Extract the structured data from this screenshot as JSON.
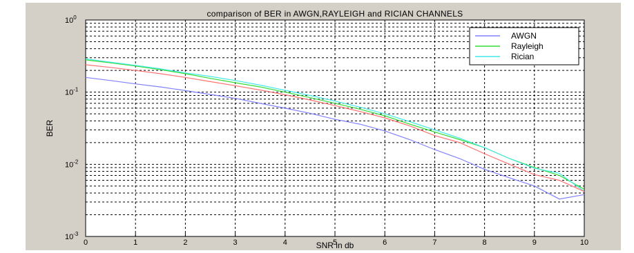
{
  "chart_data": {
    "type": "line",
    "title": "comparison of BER in AWGN,RAYLEIGH and RICIAN CHANNELS",
    "xlabel": "SNR in db",
    "ylabel": "BER",
    "xlim": [
      0,
      10
    ],
    "ylim": [
      0.001,
      1
    ],
    "yscale": "log",
    "grid": true,
    "legend_position": "top-right",
    "x_ticks": [
      "0",
      "1",
      "2",
      "3",
      "4",
      "5",
      "6",
      "7",
      "8",
      "9",
      "10"
    ],
    "y_ticks": [
      {
        "base": "10",
        "exp": "-3",
        "value": 0.001
      },
      {
        "base": "10",
        "exp": "-2",
        "value": 0.01
      },
      {
        "base": "10",
        "exp": "-1",
        "value": 0.1
      },
      {
        "base": "10",
        "exp": "0",
        "value": 1
      }
    ],
    "colors": {
      "figure_background": "#d4d0c8",
      "plot_background": "#ffffff",
      "grid": "#000000"
    },
    "series": [
      {
        "name": "AWGN",
        "color": "#8080ff",
        "x": [
          0,
          0.5,
          1,
          1.5,
          2,
          2.5,
          3,
          3.5,
          4,
          4.5,
          5,
          5.5,
          6,
          6.5,
          7,
          7.5,
          8,
          8.5,
          9,
          9.5,
          10
        ],
        "values": [
          0.16,
          0.145,
          0.13,
          0.118,
          0.105,
          0.093,
          0.082,
          0.07,
          0.06,
          0.051,
          0.042,
          0.036,
          0.029,
          0.022,
          0.016,
          0.012,
          0.0085,
          0.0065,
          0.005,
          0.0033,
          0.0038
        ]
      },
      {
        "name": "Rayleigh",
        "color": "#33dd33",
        "x": [
          0,
          0.5,
          1,
          1.5,
          2,
          2.5,
          3,
          3.5,
          4,
          4.5,
          5,
          5.5,
          6,
          6.5,
          7,
          7.5,
          8,
          8.5,
          9,
          9.5,
          10
        ],
        "values": [
          0.28,
          0.255,
          0.23,
          0.205,
          0.18,
          0.155,
          0.135,
          0.118,
          0.1,
          0.084,
          0.07,
          0.058,
          0.047,
          0.036,
          0.028,
          0.022,
          0.017,
          0.012,
          0.009,
          0.007,
          0.0045
        ]
      },
      {
        "name": "Rician",
        "color": "#44e8e8",
        "x": [
          0,
          0.5,
          1,
          1.5,
          2,
          2.5,
          3,
          3.5,
          4,
          4.5,
          5,
          5.5,
          6,
          6.5,
          7,
          7.5,
          8,
          8.5,
          9,
          9.5,
          10
        ],
        "values": [
          0.29,
          0.26,
          0.235,
          0.21,
          0.185,
          0.165,
          0.145,
          0.125,
          0.106,
          0.09,
          0.075,
          0.062,
          0.05,
          0.039,
          0.03,
          0.023,
          0.017,
          0.012,
          0.0088,
          0.0075,
          0.0042
        ]
      },
      {
        "name": "",
        "color": "#ff7070",
        "x": [
          0,
          0.5,
          1,
          1.5,
          2,
          2.5,
          3,
          3.5,
          4,
          4.5,
          5,
          5.5,
          6,
          6.5,
          7,
          7.5,
          8,
          8.5,
          9,
          9.5,
          10
        ],
        "values": [
          0.24,
          0.22,
          0.2,
          0.18,
          0.16,
          0.14,
          0.123,
          0.107,
          0.092,
          0.078,
          0.065,
          0.054,
          0.044,
          0.034,
          0.025,
          0.02,
          0.014,
          0.01,
          0.0072,
          0.006,
          0.0042
        ]
      }
    ]
  }
}
